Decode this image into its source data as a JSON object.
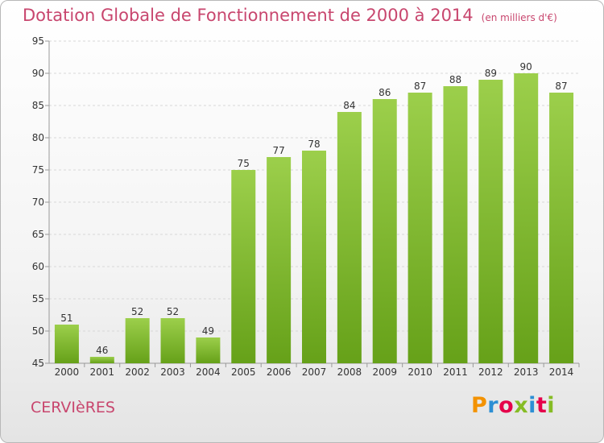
{
  "title": "Dotation Globale de Fonctionnement de 2000 à 2014",
  "units": "(en milliers d'€)",
  "commune": "CERVIèRES",
  "logo": {
    "text": "Proxiti",
    "colors": [
      "#f39200",
      "#2c8fd4",
      "#e5004a",
      "#86bc25",
      "#2c8fd4",
      "#e5004a",
      "#86bc25"
    ]
  },
  "colors": {
    "bar_top": "#9ccf4b",
    "bar_bottom": "#66a119",
    "title": "#c8466e",
    "grid": "#d8d8d8"
  },
  "chart_data": {
    "type": "bar",
    "categories": [
      "2000",
      "2001",
      "2002",
      "2003",
      "2004",
      "2005",
      "2006",
      "2007",
      "2008",
      "2009",
      "2010",
      "2011",
      "2012",
      "2013",
      "2014"
    ],
    "values": [
      51,
      46,
      52,
      52,
      49,
      75,
      77,
      78,
      84,
      86,
      87,
      88,
      89,
      90,
      87
    ],
    "title": "Dotation Globale de Fonctionnement de 2000 à 2014",
    "xlabel": "",
    "ylabel": "",
    "ylim": [
      45,
      95
    ],
    "yticks": [
      45,
      50,
      55,
      60,
      65,
      70,
      75,
      80,
      85,
      90,
      95
    ],
    "grid": "horizontal dashed"
  }
}
